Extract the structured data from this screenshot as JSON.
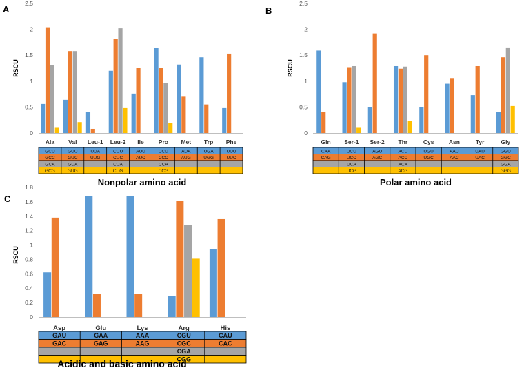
{
  "colors": {
    "s1": "#5b9bd5",
    "s2": "#ed7d31",
    "s3": "#a5a5a5",
    "s4": "#ffc000"
  },
  "chart_data": [
    {
      "panel": "A",
      "type": "bar",
      "ylabel": "RSCU",
      "ylim": [
        0,
        2.5
      ],
      "yticks": [
        "0",
        "0.5",
        "1",
        "1.5",
        "2",
        "2.5"
      ],
      "categories": [
        "Ala",
        "Val",
        "Leu-1",
        "Leu-2",
        "Ile",
        "Pro",
        "Met",
        "Trp",
        "Phe"
      ],
      "series": [
        {
          "name": "codon 1",
          "values": [
            0.56,
            0.64,
            0.41,
            1.2,
            0.76,
            1.64,
            1.32,
            1.46,
            0.48
          ]
        },
        {
          "name": "codon 2",
          "values": [
            2.04,
            1.58,
            0.08,
            1.82,
            1.26,
            1.25,
            0.7,
            0.55,
            1.53
          ]
        },
        {
          "name": "codon 3",
          "values": [
            1.31,
            1.58,
            0,
            2.02,
            0,
            0.96,
            0,
            0,
            0
          ]
        },
        {
          "name": "codon 4",
          "values": [
            0.1,
            0.21,
            0,
            0.48,
            0,
            0.19,
            0,
            0,
            0
          ]
        }
      ],
      "codon_table": [
        [
          "GCU",
          "GUU",
          "UUA",
          "CUU",
          "AUU",
          "CCU",
          "AUA",
          "UGA",
          "UUU"
        ],
        [
          "GCC",
          "GUC",
          "UUG",
          "CUC",
          "AUC",
          "CCC",
          "AUG",
          "UGG",
          "UUC"
        ],
        [
          "GCA",
          "GUA",
          "",
          "CUA",
          "",
          "CCA",
          "",
          "",
          ""
        ],
        [
          "GCG",
          "GUG",
          "",
          "CUG",
          "",
          "CCG",
          "",
          "",
          ""
        ]
      ],
      "caption": "Nonpolar amino acid"
    },
    {
      "panel": "B",
      "type": "bar",
      "ylabel": "RSCU",
      "ylim": [
        0,
        2.5
      ],
      "yticks": [
        "0",
        "0.5",
        "1",
        "1.5",
        "2",
        "2.5"
      ],
      "categories": [
        "Gln",
        "Ser-1",
        "Ser-2",
        "Thr",
        "Cys",
        "Asn",
        "Tyr",
        "Gly"
      ],
      "series": [
        {
          "name": "codon 1",
          "values": [
            1.59,
            0.98,
            0.5,
            1.29,
            0.5,
            0.95,
            0.73,
            0.4
          ]
        },
        {
          "name": "codon 2",
          "values": [
            0.41,
            1.27,
            1.92,
            1.24,
            1.5,
            1.06,
            1.29,
            1.46
          ]
        },
        {
          "name": "codon 3",
          "values": [
            0,
            1.29,
            0,
            1.28,
            0,
            0,
            0,
            1.65
          ]
        },
        {
          "name": "codon 4",
          "values": [
            0,
            0.1,
            0,
            0.23,
            0,
            0,
            0,
            0.52
          ]
        }
      ],
      "codon_table": [
        [
          "CAA",
          "UCU",
          "AGU",
          "ACU",
          "UGU",
          "AAU",
          "UAU",
          "GGU"
        ],
        [
          "CAG",
          "UCC",
          "AGC",
          "ACC",
          "UGC",
          "AAC",
          "UAC",
          "GGC"
        ],
        [
          "",
          "UCA",
          "",
          "ACA",
          "",
          "",
          "",
          "GGA"
        ],
        [
          "",
          "UCG",
          "",
          "ACG",
          "",
          "",
          "",
          "GGG"
        ]
      ],
      "caption": "Polar amino acid"
    },
    {
      "panel": "C",
      "type": "bar",
      "ylabel": "RSCU",
      "ylim": [
        0,
        1.8
      ],
      "yticks": [
        "0",
        "0.2",
        "0.4",
        "0.6",
        "0.8",
        "1",
        "1.2",
        "1.4",
        "1.6",
        "1.8"
      ],
      "categories": [
        "Asp",
        "Glu",
        "Lys",
        "Arg",
        "His"
      ],
      "series": [
        {
          "name": "codon 1",
          "values": [
            0.62,
            1.68,
            1.68,
            0.29,
            0.94
          ]
        },
        {
          "name": "codon 2",
          "values": [
            1.38,
            0.32,
            0.32,
            1.61,
            1.36
          ]
        },
        {
          "name": "codon 3",
          "values": [
            0,
            0,
            0,
            1.28,
            0
          ]
        },
        {
          "name": "codon 4",
          "values": [
            0,
            0,
            0,
            0.81,
            0
          ]
        }
      ],
      "codon_table": [
        [
          "GAU",
          "GAA",
          "AAA",
          "CGU",
          "CAU"
        ],
        [
          "GAC",
          "GAG",
          "AAG",
          "CGC",
          "CAC"
        ],
        [
          "",
          "",
          "",
          "CGA",
          ""
        ],
        [
          "",
          "",
          "",
          "CGG",
          ""
        ]
      ],
      "caption": "Acidic and basic amino acid"
    }
  ]
}
